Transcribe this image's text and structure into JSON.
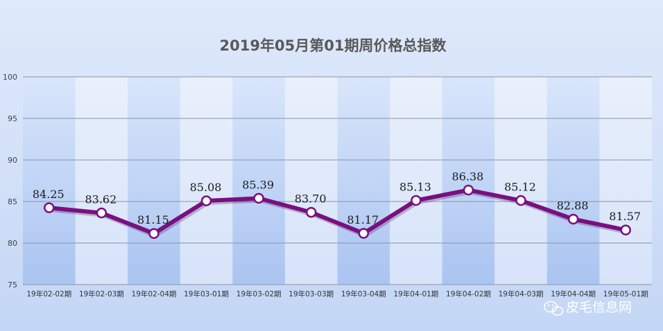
{
  "chart_data": {
    "type": "line",
    "title": "2019年05月第01期周价格总指数",
    "xlabel": "",
    "ylabel": "",
    "categories": [
      "19年02-02期",
      "19年02-03期",
      "19年02-04期",
      "19年03-01期",
      "19年03-02期",
      "19年03-03期",
      "19年03-04期",
      "19年04-01期",
      "19年04-02期",
      "19年04-03期",
      "19年04-04期",
      "19年05-01期"
    ],
    "series": [
      {
        "values": [
          84.25,
          83.62,
          81.15,
          85.08,
          85.39,
          83.7,
          81.17,
          85.13,
          86.38,
          85.12,
          82.88,
          81.57
        ]
      }
    ],
    "data_labels": [
      "84.25",
      "83.62",
      "81.15",
      "85.08",
      "85.39",
      "83.70",
      "81.17",
      "85.13",
      "86.38",
      "85.12",
      "82.88",
      "81.57"
    ],
    "ylim": [
      75,
      100
    ],
    "yticks": [
      75,
      80,
      85,
      90,
      95,
      100
    ],
    "grid": true,
    "legend": "none",
    "colors": {
      "line": "#7a0f7f",
      "marker_fill": "#ffffff",
      "grid": "#8a93a6",
      "band_dark": "#b9cff4",
      "band_light": "#e1ebfb"
    }
  },
  "watermark": {
    "text": "皮毛信息网",
    "icon": "wechat-icon"
  }
}
